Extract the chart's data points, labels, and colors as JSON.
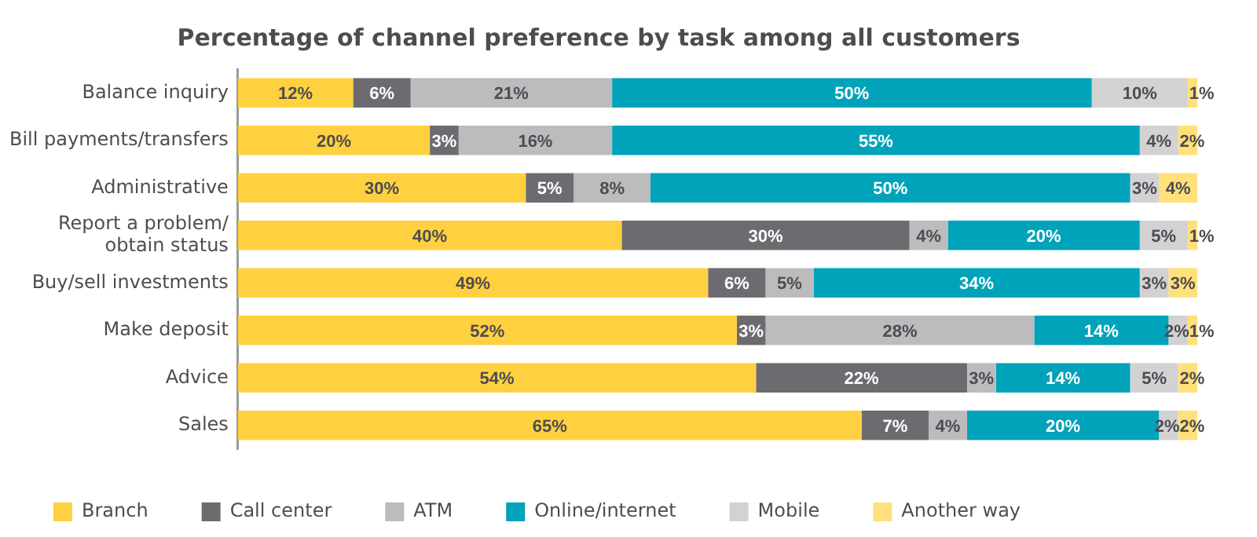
{
  "chart_data": {
    "type": "bar",
    "orientation": "horizontal",
    "stacked": true,
    "title": "Percentage of channel preference by task among all customers",
    "categories": [
      "Balance inquiry",
      "Bill payments/transfers",
      "Administrative",
      "Report a problem/\nobtain status",
      "Buy/sell investments",
      "Make deposit",
      "Advice",
      "Sales"
    ],
    "series": [
      {
        "name": "Branch",
        "color": "#ffd140",
        "values": [
          12,
          20,
          30,
          40,
          49,
          52,
          54,
          65
        ],
        "value_labels": [
          "12%",
          "20%",
          "30%",
          "40%",
          "49%",
          "52%",
          "54%",
          "65%"
        ]
      },
      {
        "name": "Call center",
        "color": "#6d6b70",
        "values": [
          6,
          3,
          5,
          30,
          6,
          3,
          22,
          7
        ],
        "value_labels": [
          "6%",
          "3%",
          "5%",
          "30%",
          "6%",
          "3%",
          "22%",
          "7%"
        ]
      },
      {
        "name": "ATM",
        "color": "#bcbcbe",
        "values": [
          21,
          16,
          8,
          4,
          5,
          28,
          3,
          4
        ],
        "value_labels": [
          "21%",
          "16%",
          "8%",
          "4%",
          "5%",
          "28%",
          "3%",
          "4%"
        ]
      },
      {
        "name": "Online/internet",
        "color": "#00a3b9",
        "values": [
          50,
          55,
          50,
          20,
          34,
          14,
          14,
          20
        ],
        "value_labels": [
          "50%",
          "55%",
          "50%",
          "20%",
          "34%",
          "14%",
          "14%",
          "20%"
        ]
      },
      {
        "name": "Mobile",
        "color": "#d2d2d4",
        "values": [
          10,
          4,
          3,
          5,
          3,
          2,
          5,
          2
        ],
        "value_labels": [
          "10%",
          "4%",
          "3%",
          "5%",
          "3%",
          "2%",
          "5%",
          "2%"
        ]
      },
      {
        "name": "Another way",
        "color": "#ffe07a",
        "values": [
          1,
          2,
          4,
          1,
          3,
          1,
          2,
          2
        ],
        "value_labels": [
          "1%",
          "2%",
          "4%",
          "1%",
          "3%",
          "1%",
          "2%",
          "2%"
        ]
      }
    ],
    "tick_labels": "y",
    "legend": "bottom left"
  }
}
